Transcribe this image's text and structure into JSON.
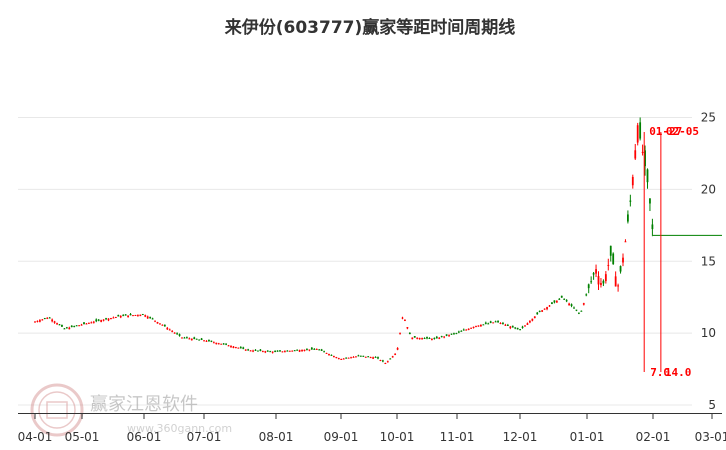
{
  "chart_data": {
    "type": "candlestick",
    "title": "来伊份(603777)赢家等距时间周期线",
    "ylim": [
      5,
      25
    ],
    "y_ticks": [
      5,
      10,
      15,
      20,
      25
    ],
    "x_ticks": [
      "04-01",
      "05-01",
      "06-01",
      "07-01",
      "08-01",
      "09-01",
      "10-01",
      "11-01",
      "12-01",
      "01-01",
      "02-01",
      "03-01"
    ],
    "grid": "horizontal",
    "colors": {
      "up": "#ff0000",
      "down": "#008000",
      "line": "#008000",
      "annotation": "#ff0000",
      "grid": "#e8e8e8"
    },
    "price_points": [
      [
        "04-01",
        10.8
      ],
      [
        "04-10",
        11.1
      ],
      [
        "04-20",
        10.3
      ],
      [
        "05-01",
        10.6
      ],
      [
        "05-10",
        10.9
      ],
      [
        "05-20",
        11.2
      ],
      [
        "06-01",
        11.3
      ],
      [
        "06-10",
        10.6
      ],
      [
        "06-20",
        9.7
      ],
      [
        "07-01",
        9.5
      ],
      [
        "07-10",
        9.2
      ],
      [
        "07-20",
        8.8
      ],
      [
        "08-01",
        8.7
      ],
      [
        "08-10",
        8.8
      ],
      [
        "08-20",
        8.9
      ],
      [
        "09-01",
        8.2
      ],
      [
        "09-10",
        8.4
      ],
      [
        "09-20",
        8.3
      ],
      [
        "09-25",
        7.9
      ],
      [
        "10-01",
        8.7
      ],
      [
        "10-04",
        11.3
      ],
      [
        "10-08",
        9.7
      ],
      [
        "10-20",
        9.6
      ],
      [
        "11-01",
        10.0
      ],
      [
        "11-10",
        10.5
      ],
      [
        "11-20",
        10.8
      ],
      [
        "12-01",
        10.2
      ],
      [
        "12-10",
        11.5
      ],
      [
        "12-20",
        12.5
      ],
      [
        "12-28",
        11.3
      ],
      [
        "01-01",
        12.8
      ],
      [
        "01-05",
        14.5
      ],
      [
        "01-08",
        13.2
      ],
      [
        "01-12",
        15.5
      ],
      [
        "01-15",
        13.2
      ],
      [
        "01-18",
        15.8
      ],
      [
        "01-21",
        19.5
      ],
      [
        "01-24",
        24.5
      ],
      [
        "01-27",
        22.0
      ],
      [
        "01-29",
        20.0
      ],
      [
        "02-01",
        16.8
      ]
    ],
    "last_price": 16.8,
    "cycle_lines": [
      {
        "top_label": "01-27",
        "bottom_label": "7.0",
        "date": "01-27"
      },
      {
        "top_label": "02-05",
        "bottom_label": "14.0",
        "date": "02-05"
      }
    ]
  },
  "watermark": {
    "text": "赢家江恩软件",
    "url": "www.360gann.com"
  }
}
